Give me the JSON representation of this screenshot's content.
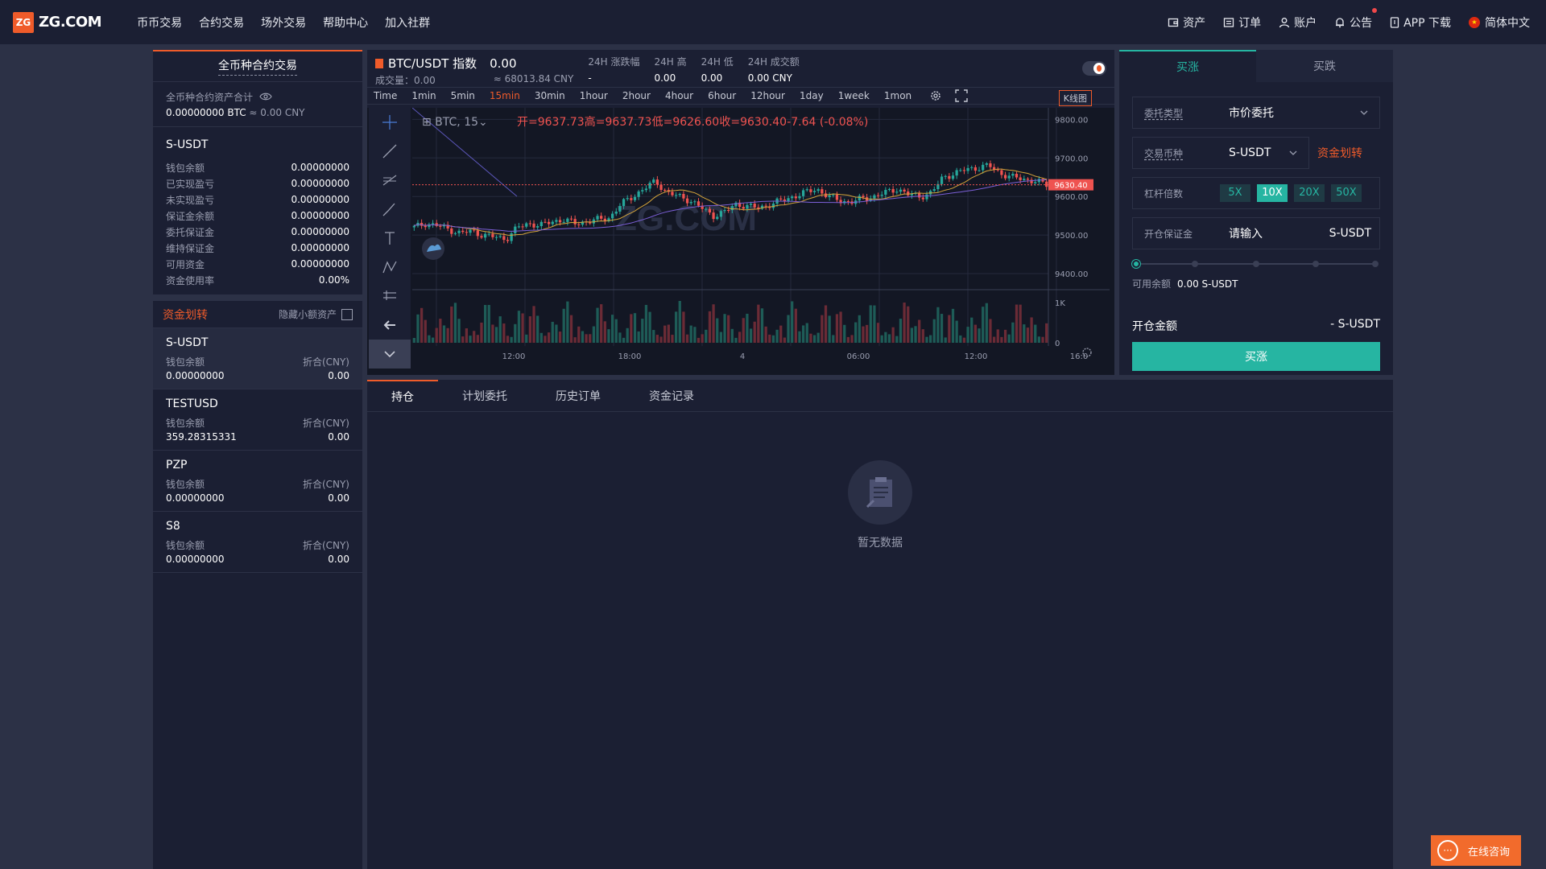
{
  "header": {
    "logo_badge": "ZG",
    "logo_text": "ZG.COM",
    "nav": [
      "币币交易",
      "合约交易",
      "场外交易",
      "帮助中心",
      "加入社群"
    ],
    "right": {
      "assets": "资产",
      "orders": "订单",
      "account": "账户",
      "notice": "公告",
      "app": "APP 下载",
      "lang": "简体中文"
    }
  },
  "left": {
    "title": "全币种合约交易",
    "total_label": "全币种合约资产合计",
    "total_btc": "0.00000000 BTC",
    "total_cny": "≈ 0.00 CNY",
    "summary": {
      "name": "S-USDT",
      "rows": [
        {
          "k": "钱包余额",
          "v": "0.00000000"
        },
        {
          "k": "已实现盈亏",
          "v": "0.00000000"
        },
        {
          "k": "未实现盈亏",
          "v": "0.00000000"
        },
        {
          "k": "保证金余额",
          "v": "0.00000000"
        },
        {
          "k": "委托保证金",
          "v": "0.00000000"
        },
        {
          "k": "维持保证金",
          "v": "0.00000000"
        },
        {
          "k": "可用资金",
          "v": "0.00000000"
        },
        {
          "k": "资金使用率",
          "v": "0.00%"
        }
      ]
    },
    "transfer": "资金划转",
    "hide_small": "隐藏小额资产",
    "coins": [
      {
        "name": "S-USDT",
        "wallet_label": "钱包余额",
        "cny_label": "折合(CNY)",
        "wallet": "0.00000000",
        "cny": "0.00"
      },
      {
        "name": "TESTUSD",
        "wallet_label": "钱包余额",
        "cny_label": "折合(CNY)",
        "wallet": "359.28315331",
        "cny": "0.00"
      },
      {
        "name": "PZP",
        "wallet_label": "钱包余额",
        "cny_label": "折合(CNY)",
        "wallet": "0.00000000",
        "cny": "0.00"
      },
      {
        "name": "S8",
        "wallet_label": "钱包余额",
        "cny_label": "折合(CNY)",
        "wallet": "0.00000000",
        "cny": "0.00"
      }
    ]
  },
  "chart_header": {
    "pair": "BTC/USDT 指数",
    "price": "0.00",
    "volume": "成交量：0.00",
    "cny": "≈ 68013.84 CNY",
    "stats": [
      {
        "label": "24H 涨跌幅",
        "value": "-"
      },
      {
        "label": "24H 高",
        "value": "0.00"
      },
      {
        "label": "24H 低",
        "value": "0.00"
      },
      {
        "label": "24H 成交额",
        "value": "0.00 CNY"
      }
    ]
  },
  "intervals": [
    "Time",
    "1min",
    "5min",
    "15min",
    "30min",
    "1hour",
    "2hour",
    "4hour",
    "6hour",
    "12hour",
    "1day",
    "1week",
    "1mon"
  ],
  "active_interval": "15min",
  "kline_btn": "K线图",
  "chart_data": {
    "type": "candlestick",
    "symbol": "BTC, 15",
    "ohlc_label": {
      "open": "开=9637.73",
      "high": "高=9637.73",
      "low": "低=9626.60",
      "close": "收=9630.40",
      "change": "-7.64 (-0.08%)"
    },
    "last_price": "9630.40",
    "watermark": "ZG.COM",
    "y_ticks": [
      "9800.00",
      "9700.00",
      "9600.00",
      "9500.00",
      "9400.00"
    ],
    "vol_ticks": [
      "1K",
      "0"
    ],
    "x_ticks": [
      "12:00",
      "18:00",
      "4",
      "06:00",
      "12:00",
      "16:0"
    ],
    "close_path": [
      9520,
      9530,
      9525,
      9515,
      9505,
      9510,
      9500,
      9495,
      9490,
      9520,
      9530,
      9525,
      9535,
      9540,
      9530,
      9535,
      9540,
      9545,
      9580,
      9600,
      9620,
      9640,
      9610,
      9600,
      9590,
      9570,
      9550,
      9560,
      9580,
      9575,
      9570,
      9580,
      9590,
      9600,
      9610,
      9620,
      9600,
      9590,
      9585,
      9595,
      9600,
      9610,
      9620,
      9605,
      9600,
      9610,
      9650,
      9660,
      9670,
      9675,
      9680,
      9660,
      9650,
      9645,
      9640,
      9630
    ],
    "colors": {
      "up": "#26a69a",
      "down": "#ef5350"
    }
  },
  "trade": {
    "tab_buy": "买涨",
    "tab_sell": "买跌",
    "order_type_label": "委托类型",
    "order_type": "市价委托",
    "coin_label": "交易币种",
    "coin": "S-USDT",
    "transfer": "资金划转",
    "lev_label": "杠杆倍数",
    "levels": [
      "5X",
      "10X",
      "20X",
      "50X"
    ],
    "active_level": "10X",
    "margin_label": "开仓保证金",
    "margin_placeholder": "请输入",
    "margin_unit": "S-USDT",
    "avail_label": "可用余额",
    "avail_value": "0.00 S-USDT",
    "open_label": "开仓金额",
    "open_value": "- S-USDT",
    "button": "买涨"
  },
  "bottom": {
    "tabs": [
      "持仓",
      "计划委托",
      "历史订单",
      "资金记录"
    ],
    "empty": "暂无数据"
  },
  "consult": "在线咨询"
}
